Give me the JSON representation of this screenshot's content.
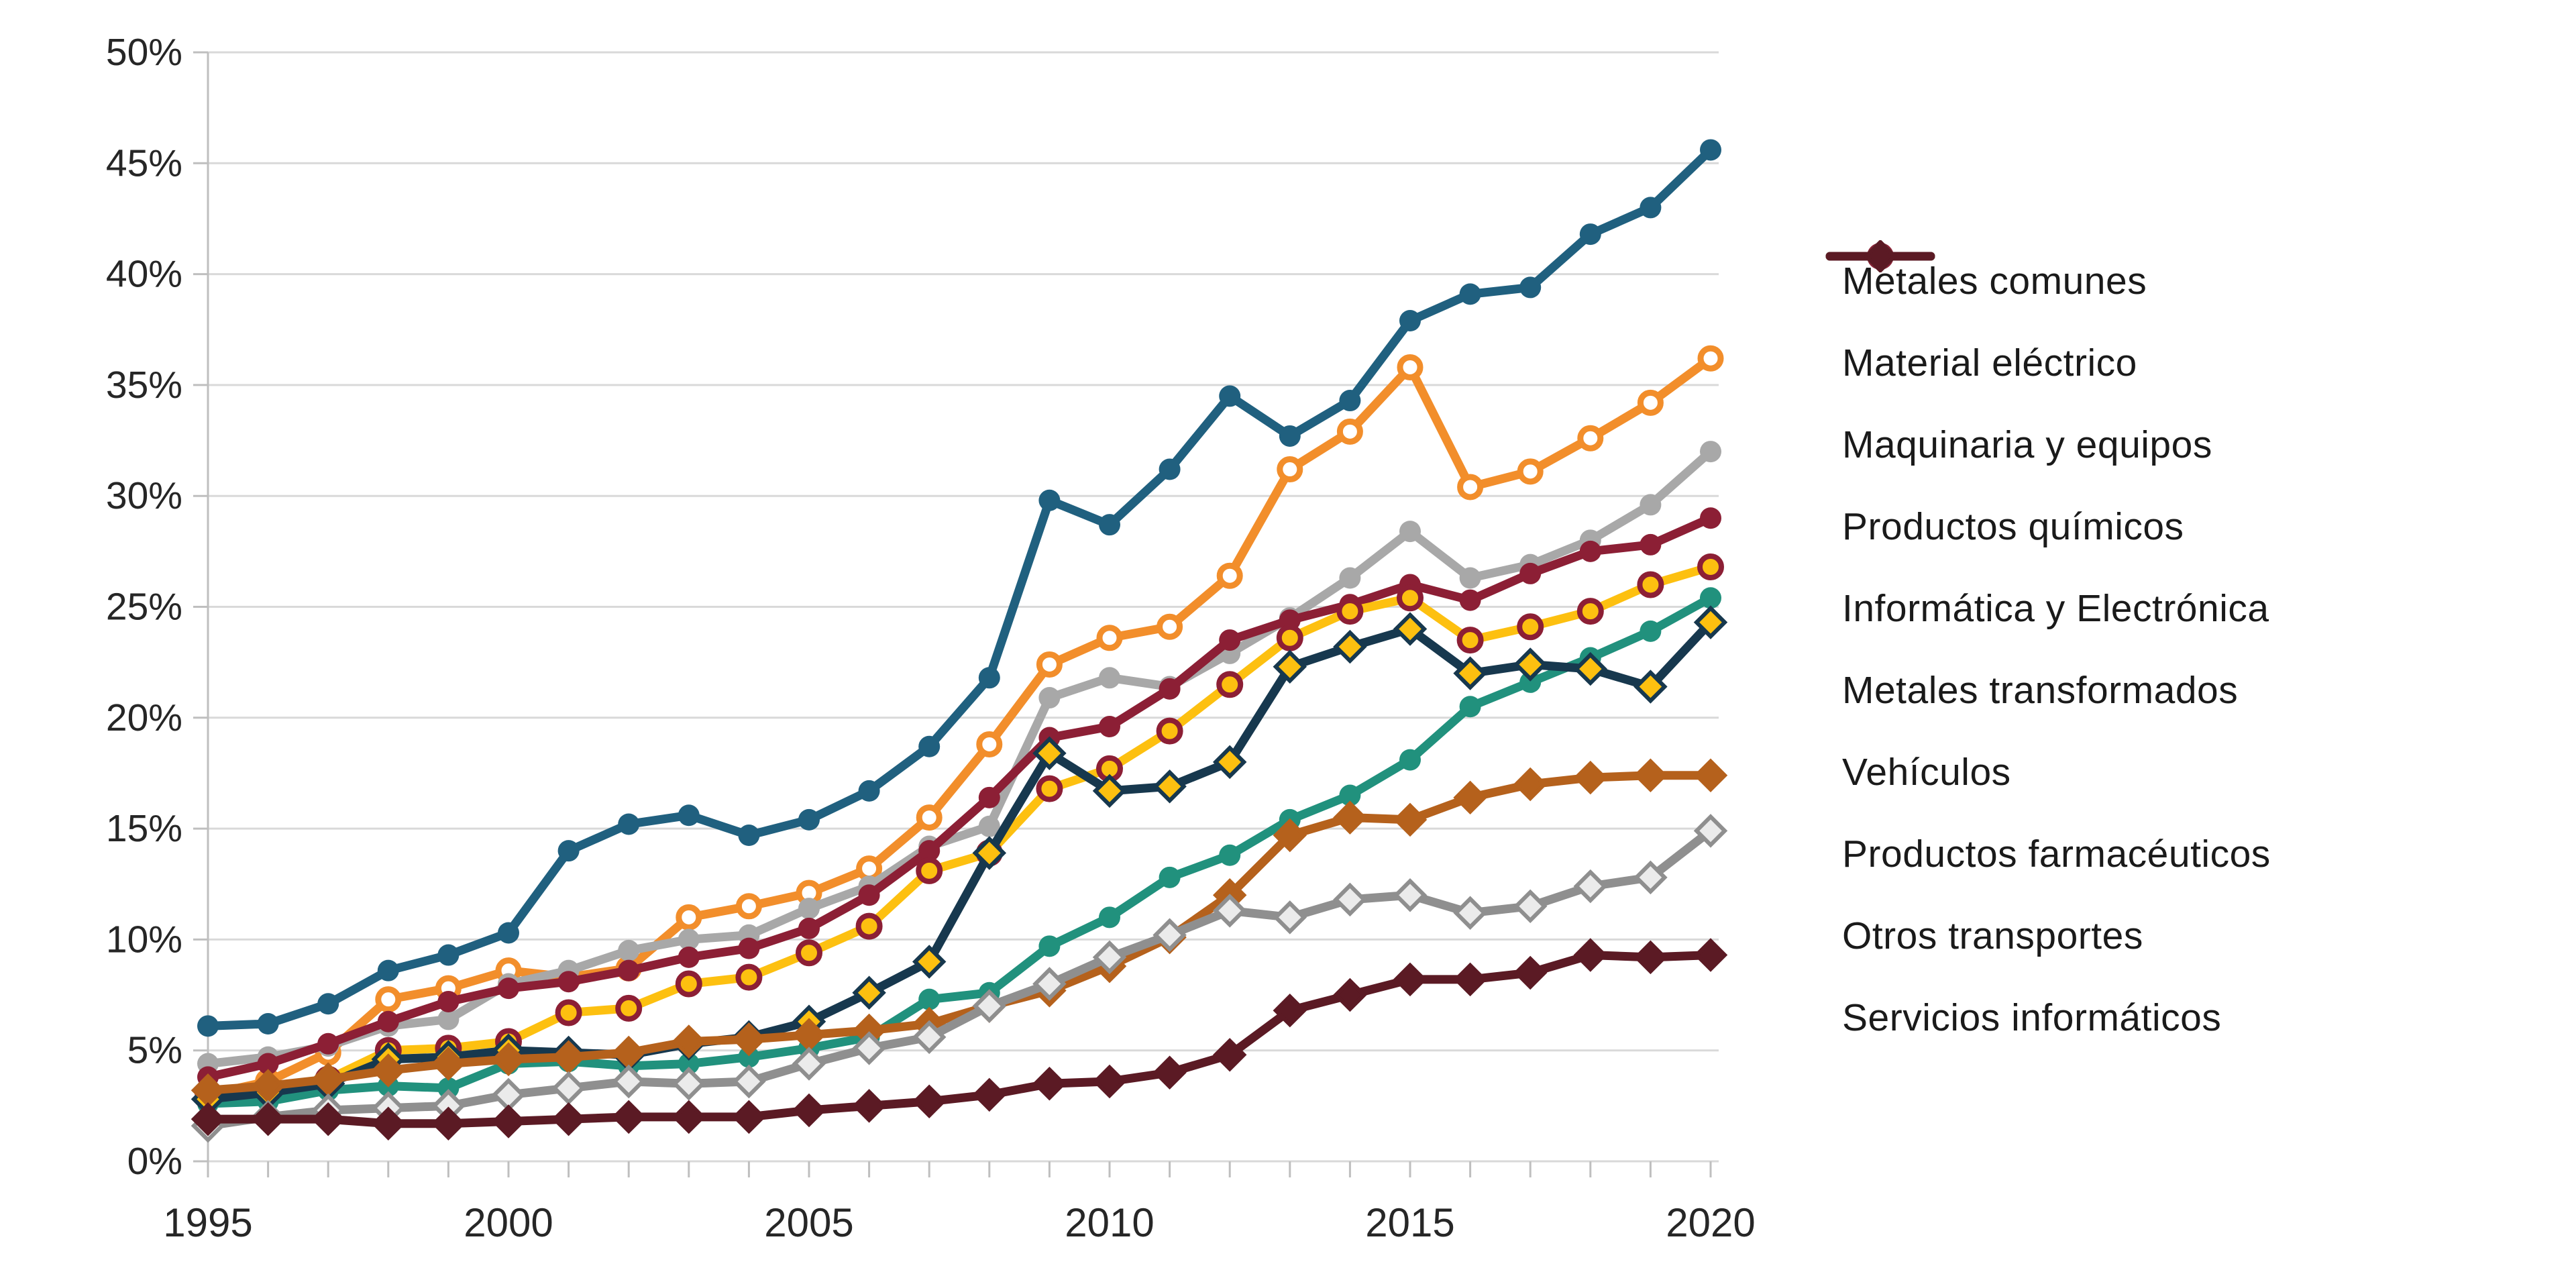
{
  "chart_data": {
    "type": "line",
    "title": "",
    "xlabel": "",
    "ylabel": "",
    "ylim": [
      0,
      50
    ],
    "xlim": [
      1995,
      2020
    ],
    "grid": "horizontal",
    "legend_position": "right",
    "y_tick_step": 5,
    "y_tick_labels": [
      "0%",
      "5%",
      "10%",
      "15%",
      "20%",
      "25%",
      "30%",
      "35%",
      "40%",
      "45%",
      "50%"
    ],
    "x_tick_labels": [
      "1995",
      "2000",
      "2005",
      "2010",
      "2015",
      "2020"
    ],
    "x": [
      1995,
      1996,
      1997,
      1998,
      1999,
      2000,
      2001,
      2002,
      2003,
      2004,
      2005,
      2006,
      2007,
      2008,
      2009,
      2010,
      2011,
      2012,
      2013,
      2014,
      2015,
      2016,
      2017,
      2018,
      2019,
      2020
    ],
    "series": [
      {
        "name": "Metales comunes",
        "color": "#20607f",
        "marker": "circle",
        "values": [
          6.1,
          6.2,
          7.1,
          8.6,
          9.3,
          10.3,
          14.0,
          15.2,
          15.6,
          14.7,
          15.4,
          16.7,
          18.7,
          21.8,
          29.8,
          28.7,
          31.2,
          34.5,
          32.7,
          34.3,
          37.9,
          39.1,
          39.4,
          41.8,
          43.0,
          45.6
        ]
      },
      {
        "name": "Material eléctrico",
        "color": "#f28e2b",
        "marker": "open-circle",
        "values": [
          3.0,
          3.6,
          4.9,
          7.3,
          7.8,
          8.6,
          8.3,
          8.7,
          11.0,
          11.5,
          12.1,
          13.2,
          15.5,
          18.8,
          22.4,
          23.6,
          24.1,
          26.4,
          31.2,
          32.9,
          35.8,
          30.4,
          31.1,
          32.6,
          34.2,
          36.2
        ]
      },
      {
        "name": "Maquinaria y equipos",
        "color": "#a8a8a8",
        "marker": "circle",
        "values": [
          4.4,
          4.7,
          5.2,
          6.1,
          6.4,
          8.0,
          8.6,
          9.5,
          10.0,
          10.2,
          11.4,
          12.4,
          14.2,
          15.1,
          20.9,
          21.8,
          21.4,
          22.9,
          24.5,
          26.3,
          28.4,
          26.3,
          26.9,
          28.0,
          29.6,
          32.0
        ]
      },
      {
        "name": "Productos químicos",
        "color": "#8c1f35",
        "marker": "circle",
        "values": [
          3.8,
          4.4,
          5.3,
          6.3,
          7.2,
          7.8,
          8.1,
          8.6,
          9.2,
          9.6,
          10.5,
          12.0,
          14.0,
          16.4,
          19.1,
          19.6,
          21.3,
          23.5,
          24.4,
          25.1,
          26.0,
          25.3,
          26.5,
          27.5,
          27.8,
          29.0
        ]
      },
      {
        "name": "Informática y Electrónica",
        "color": "#fdc010",
        "marker": "ring-circle",
        "marker_stroke": "#8c1f35",
        "values": [
          3.1,
          3.3,
          3.7,
          5.0,
          5.1,
          5.4,
          6.7,
          6.9,
          8.0,
          8.3,
          9.4,
          10.6,
          13.1,
          13.9,
          16.8,
          17.7,
          19.4,
          21.5,
          23.6,
          24.8,
          25.4,
          23.5,
          24.1,
          24.8,
          26.0,
          26.8
        ]
      },
      {
        "name": "Metales transformados",
        "color": "#21917d",
        "marker": "circle",
        "values": [
          2.6,
          2.7,
          3.2,
          3.4,
          3.3,
          4.4,
          4.5,
          4.3,
          4.4,
          4.7,
          5.1,
          5.6,
          7.3,
          7.6,
          9.7,
          11.0,
          12.8,
          13.8,
          15.4,
          16.5,
          18.1,
          20.5,
          21.6,
          22.7,
          23.9,
          25.4
        ]
      },
      {
        "name": "Vehículos",
        "color": "#17384e",
        "marker": "diamond",
        "marker_fill": "#fdc010",
        "marker_stroke": "#17384e",
        "values": [
          2.8,
          3.1,
          3.5,
          4.6,
          4.7,
          5.0,
          4.9,
          4.8,
          5.3,
          5.6,
          6.3,
          7.6,
          9.0,
          13.9,
          18.4,
          16.7,
          16.9,
          18.0,
          22.3,
          23.2,
          24.0,
          22.0,
          22.4,
          22.2,
          21.4,
          24.3
        ]
      },
      {
        "name": "Productos farmacéuticos",
        "color": "#b5611c",
        "marker": "diamond",
        "marker_fill": "#b5611c",
        "marker_stroke": "#b5611c",
        "values": [
          3.2,
          3.4,
          3.7,
          4.1,
          4.4,
          4.6,
          4.7,
          4.9,
          5.4,
          5.5,
          5.7,
          5.9,
          6.2,
          7.0,
          7.7,
          8.8,
          10.1,
          12.0,
          14.7,
          15.5,
          15.4,
          16.4,
          17.0,
          17.3,
          17.4,
          17.4
        ]
      },
      {
        "name": "Otros transportes",
        "color": "#8f8f8f",
        "marker": "diamond",
        "marker_fill": "#ebebeb",
        "marker_stroke": "#8f8f8f",
        "values": [
          1.6,
          2.0,
          2.3,
          2.4,
          2.5,
          3.0,
          3.3,
          3.6,
          3.5,
          3.6,
          4.4,
          5.1,
          5.6,
          7.0,
          8.0,
          9.2,
          10.2,
          11.3,
          11.0,
          11.8,
          12.0,
          11.2,
          11.5,
          12.4,
          12.8,
          14.9
        ]
      },
      {
        "name": "Servicios informáticos",
        "color": "#5b1a24",
        "marker": "diamond",
        "marker_fill": "#5b1a24",
        "marker_stroke": "#5b1a24",
        "values": [
          1.9,
          1.9,
          1.9,
          1.7,
          1.7,
          1.8,
          1.9,
          2.0,
          2.0,
          2.0,
          2.3,
          2.5,
          2.7,
          3.0,
          3.5,
          3.6,
          4.0,
          4.8,
          6.8,
          7.5,
          8.2,
          8.2,
          8.5,
          9.3,
          9.2,
          9.3
        ]
      }
    ]
  },
  "style": {
    "gridline_color": "#d9d9d9",
    "axis_color": "#bfbfbf",
    "tick_label_color": "#262626",
    "legend_text_color": "#1a1a1a",
    "background": "#ffffff"
  }
}
